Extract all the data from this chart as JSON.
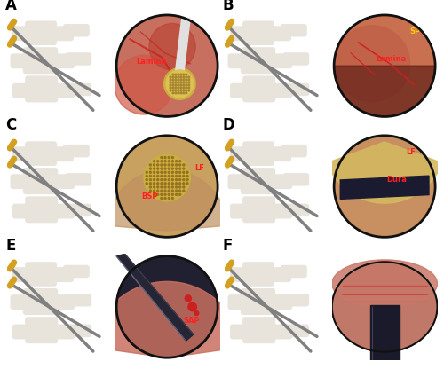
{
  "panels": [
    "A",
    "B",
    "C",
    "D",
    "E",
    "F"
  ],
  "panel_labels_fontsize": 12,
  "panel_label_color": "#000000",
  "background_color": "#ffffff",
  "label_color": "#ff2020",
  "label_fontsize": 6,
  "annotations": {
    "A": [
      "Lamina"
    ],
    "B": [
      "SP",
      "Lamina"
    ],
    "C": [
      "BSP",
      "LF"
    ],
    "D": [
      "LF",
      "Dura"
    ],
    "E": [
      "SAP"
    ],
    "F": []
  },
  "surgical_bg": "#1a6b5a",
  "endo_bg_A": "#c87060",
  "endo_bg_B": "#c87050",
  "endo_bg_C": "#c8a060",
  "endo_bg_D": "#c89060",
  "endo_bg_E": "#c87060",
  "endo_bg_F": "#c87060",
  "spine_color": "#e8e4dc",
  "instrument_color": "#808080",
  "drill_color": "#c8b040",
  "dura_color": "#202040"
}
